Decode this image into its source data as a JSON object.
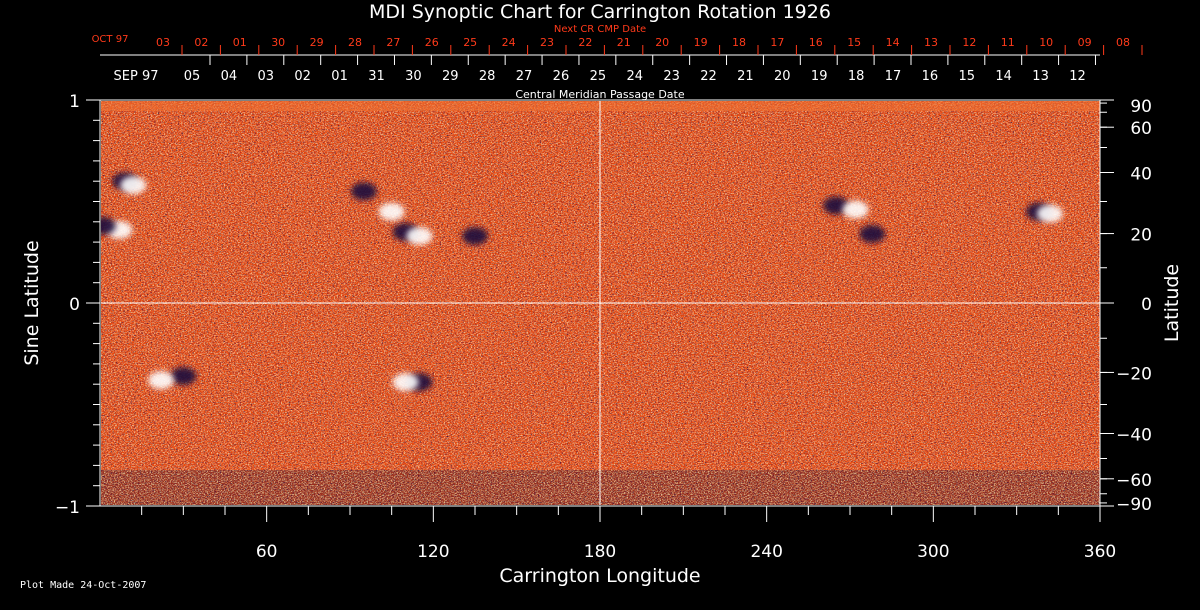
{
  "chart_data": {
    "type": "heatmap",
    "title": "MDI Synoptic Chart for Carrington Rotation 1926",
    "xlabel": "Carrington Longitude",
    "ylabel_left": "Sine Latitude",
    "ylabel_right": "Latitude",
    "xlim": [
      0,
      360
    ],
    "ylim": [
      -1,
      1
    ],
    "x_ticks": [
      60,
      120,
      180,
      240,
      300,
      360
    ],
    "x_minor_step": 15,
    "y_ticks_left": [
      1,
      0,
      -1
    ],
    "y_ticks_left_labels": [
      "1",
      "0",
      "−1"
    ],
    "y_ticks_right": [
      90,
      60,
      40,
      20,
      0,
      -20,
      -40,
      -60,
      -90
    ],
    "y_ticks_right_labels": [
      "90",
      "60",
      "40",
      "20",
      "0",
      "−20",
      "−40",
      "−60",
      "−90"
    ],
    "grid": "crosshair at 180 longitude and 0 latitude",
    "top_axis_red": {
      "title": "Next CR CMP Date",
      "month_label": "OCT 97",
      "days": [
        "03",
        "02",
        "01",
        "30",
        "29",
        "28",
        "27",
        "26",
        "25",
        "24",
        "23",
        "22",
        "21",
        "20",
        "19",
        "18",
        "17",
        "16",
        "15",
        "14",
        "13",
        "12",
        "11",
        "10",
        "09",
        "08"
      ]
    },
    "top_axis_white": {
      "title": "Central Meridian Passage Date",
      "month_label": "SEP 97",
      "days": [
        "05",
        "04",
        "03",
        "02",
        "01",
        "31",
        "30",
        "29",
        "28",
        "27",
        "26",
        "25",
        "24",
        "23",
        "22",
        "21",
        "20",
        "19",
        "18",
        "17",
        "16",
        "15",
        "14",
        "13",
        "12"
      ]
    },
    "active_regions": [
      {
        "lon": 95,
        "sinlat": 0.55,
        "polarity": "negative"
      },
      {
        "lon": 110,
        "sinlat": 0.35,
        "polarity": "negative"
      },
      {
        "lon": 105,
        "sinlat": 0.45,
        "polarity": "positive"
      },
      {
        "lon": 115,
        "sinlat": 0.33,
        "polarity": "positive"
      },
      {
        "lon": 135,
        "sinlat": 0.33,
        "polarity": "negative"
      },
      {
        "lon": 9,
        "sinlat": 0.6,
        "polarity": "negative"
      },
      {
        "lon": 12,
        "sinlat": 0.58,
        "polarity": "positive"
      },
      {
        "lon": 7,
        "sinlat": 0.36,
        "polarity": "positive"
      },
      {
        "lon": 1,
        "sinlat": 0.38,
        "polarity": "negative"
      },
      {
        "lon": 265,
        "sinlat": 0.48,
        "polarity": "negative"
      },
      {
        "lon": 272,
        "sinlat": 0.46,
        "polarity": "positive"
      },
      {
        "lon": 278,
        "sinlat": 0.34,
        "polarity": "negative"
      },
      {
        "lon": 338,
        "sinlat": 0.45,
        "polarity": "negative"
      },
      {
        "lon": 342,
        "sinlat": 0.44,
        "polarity": "positive"
      },
      {
        "lon": 30,
        "sinlat": -0.36,
        "polarity": "negative"
      },
      {
        "lon": 22,
        "sinlat": -0.38,
        "polarity": "positive"
      },
      {
        "lon": 115,
        "sinlat": -0.39,
        "polarity": "negative"
      },
      {
        "lon": 110,
        "sinlat": -0.39,
        "polarity": "positive"
      }
    ]
  },
  "colors": {
    "background": "#000000",
    "field_base": "#e84a10",
    "positive": "#ffffff",
    "negative": "#1a0a3c",
    "red_label": "#ff3a1a"
  },
  "footer": "Plot Made 24-Oct-2007"
}
